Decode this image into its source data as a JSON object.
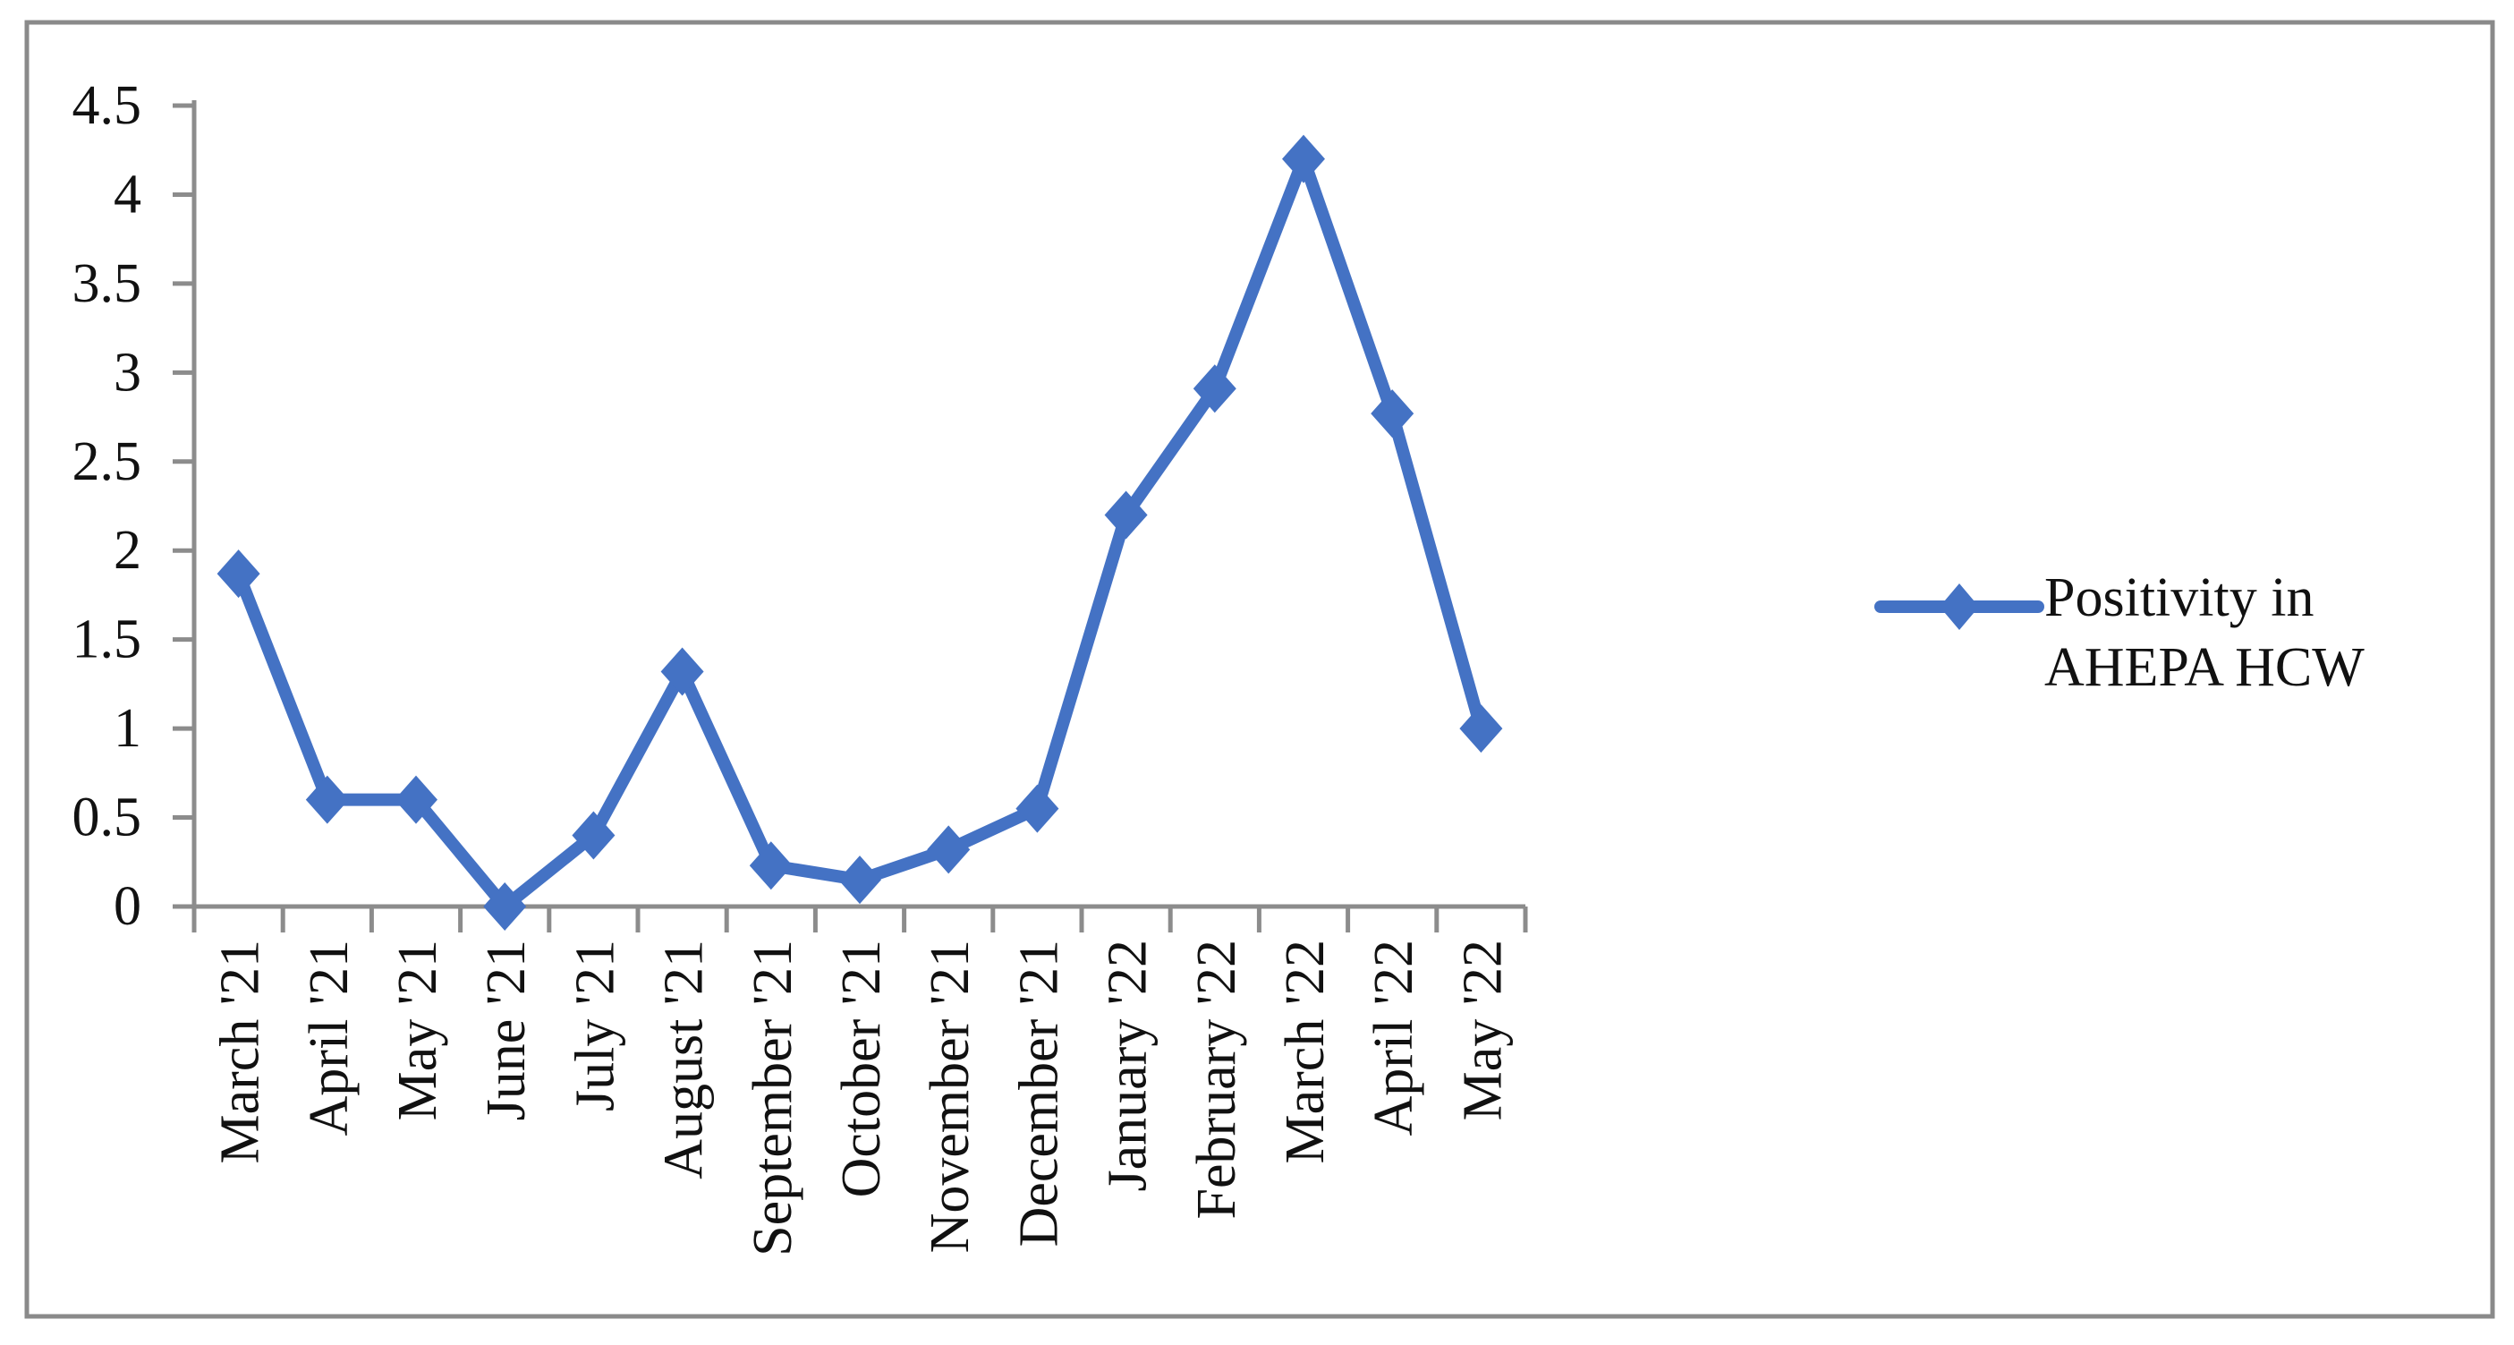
{
  "figure": {
    "background": "#ffffff",
    "border_color": "#8a8a8a"
  },
  "chart_data": {
    "type": "line",
    "title": "",
    "xlabel": "",
    "ylabel": "",
    "categories": [
      "March '21",
      "April '21",
      "May '21",
      "June '21",
      "July '21",
      "August '21",
      "September '21",
      "October '21",
      "November '21",
      "December '21",
      "January '22",
      "February '22",
      "March '22",
      "April '22",
      "May '22"
    ],
    "series": [
      {
        "name": "Positivity in AHEPA HCW",
        "values": [
          1.87,
          0.6,
          0.6,
          0,
          0.4,
          1.32,
          0.23,
          0.15,
          0.32,
          0.55,
          2.2,
          2.91,
          4.2,
          2.77,
          1.0
        ]
      }
    ],
    "ylim": [
      0,
      4.5
    ],
    "y_ticks": [
      0,
      0.5,
      1,
      1.5,
      2,
      2.5,
      3,
      3.5,
      4,
      4.5
    ],
    "y_tick_labels": [
      "0",
      "0.5",
      "1",
      "1.5",
      "2",
      "2.5",
      "3",
      "3.5",
      "4",
      "4.5"
    ],
    "grid": false,
    "marker": "diamond",
    "legend_position": "right-middle",
    "legend_lines": [
      "Positivity in",
      "AHEPA HCW"
    ],
    "colors": {
      "series": "#4472C4",
      "axis": "#8C8C8C",
      "text": "#111111",
      "border": "#8a8a8a"
    }
  }
}
